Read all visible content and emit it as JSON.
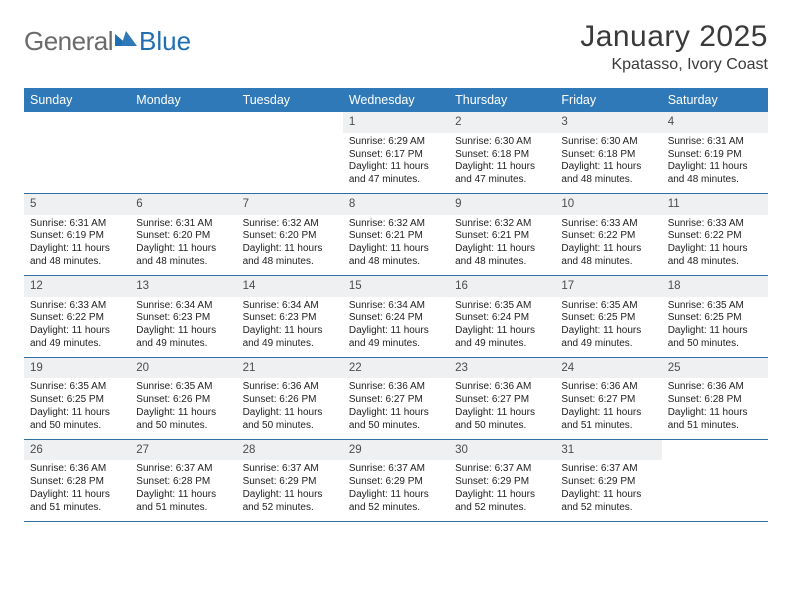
{
  "brand": {
    "text1": "General",
    "text2": "Blue"
  },
  "title": "January 2025",
  "location": "Kpatasso, Ivory Coast",
  "colors": {
    "header_bg": "#2f79b8",
    "header_text": "#ffffff",
    "week_border": "#2f6fa6",
    "daynum_bg": "#eef0f2",
    "brand_grey": "#6b6b6b",
    "brand_blue": "#1f6fb2"
  },
  "weekdays": [
    "Sunday",
    "Monday",
    "Tuesday",
    "Wednesday",
    "Thursday",
    "Friday",
    "Saturday"
  ],
  "weeks": [
    [
      null,
      null,
      null,
      {
        "n": "1",
        "sr": "6:29 AM",
        "ss": "6:17 PM",
        "dl": "11 hours and 47 minutes."
      },
      {
        "n": "2",
        "sr": "6:30 AM",
        "ss": "6:18 PM",
        "dl": "11 hours and 47 minutes."
      },
      {
        "n": "3",
        "sr": "6:30 AM",
        "ss": "6:18 PM",
        "dl": "11 hours and 48 minutes."
      },
      {
        "n": "4",
        "sr": "6:31 AM",
        "ss": "6:19 PM",
        "dl": "11 hours and 48 minutes."
      }
    ],
    [
      {
        "n": "5",
        "sr": "6:31 AM",
        "ss": "6:19 PM",
        "dl": "11 hours and 48 minutes."
      },
      {
        "n": "6",
        "sr": "6:31 AM",
        "ss": "6:20 PM",
        "dl": "11 hours and 48 minutes."
      },
      {
        "n": "7",
        "sr": "6:32 AM",
        "ss": "6:20 PM",
        "dl": "11 hours and 48 minutes."
      },
      {
        "n": "8",
        "sr": "6:32 AM",
        "ss": "6:21 PM",
        "dl": "11 hours and 48 minutes."
      },
      {
        "n": "9",
        "sr": "6:32 AM",
        "ss": "6:21 PM",
        "dl": "11 hours and 48 minutes."
      },
      {
        "n": "10",
        "sr": "6:33 AM",
        "ss": "6:22 PM",
        "dl": "11 hours and 48 minutes."
      },
      {
        "n": "11",
        "sr": "6:33 AM",
        "ss": "6:22 PM",
        "dl": "11 hours and 48 minutes."
      }
    ],
    [
      {
        "n": "12",
        "sr": "6:33 AM",
        "ss": "6:22 PM",
        "dl": "11 hours and 49 minutes."
      },
      {
        "n": "13",
        "sr": "6:34 AM",
        "ss": "6:23 PM",
        "dl": "11 hours and 49 minutes."
      },
      {
        "n": "14",
        "sr": "6:34 AM",
        "ss": "6:23 PM",
        "dl": "11 hours and 49 minutes."
      },
      {
        "n": "15",
        "sr": "6:34 AM",
        "ss": "6:24 PM",
        "dl": "11 hours and 49 minutes."
      },
      {
        "n": "16",
        "sr": "6:35 AM",
        "ss": "6:24 PM",
        "dl": "11 hours and 49 minutes."
      },
      {
        "n": "17",
        "sr": "6:35 AM",
        "ss": "6:25 PM",
        "dl": "11 hours and 49 minutes."
      },
      {
        "n": "18",
        "sr": "6:35 AM",
        "ss": "6:25 PM",
        "dl": "11 hours and 50 minutes."
      }
    ],
    [
      {
        "n": "19",
        "sr": "6:35 AM",
        "ss": "6:25 PM",
        "dl": "11 hours and 50 minutes."
      },
      {
        "n": "20",
        "sr": "6:35 AM",
        "ss": "6:26 PM",
        "dl": "11 hours and 50 minutes."
      },
      {
        "n": "21",
        "sr": "6:36 AM",
        "ss": "6:26 PM",
        "dl": "11 hours and 50 minutes."
      },
      {
        "n": "22",
        "sr": "6:36 AM",
        "ss": "6:27 PM",
        "dl": "11 hours and 50 minutes."
      },
      {
        "n": "23",
        "sr": "6:36 AM",
        "ss": "6:27 PM",
        "dl": "11 hours and 50 minutes."
      },
      {
        "n": "24",
        "sr": "6:36 AM",
        "ss": "6:27 PM",
        "dl": "11 hours and 51 minutes."
      },
      {
        "n": "25",
        "sr": "6:36 AM",
        "ss": "6:28 PM",
        "dl": "11 hours and 51 minutes."
      }
    ],
    [
      {
        "n": "26",
        "sr": "6:36 AM",
        "ss": "6:28 PM",
        "dl": "11 hours and 51 minutes."
      },
      {
        "n": "27",
        "sr": "6:37 AM",
        "ss": "6:28 PM",
        "dl": "11 hours and 51 minutes."
      },
      {
        "n": "28",
        "sr": "6:37 AM",
        "ss": "6:29 PM",
        "dl": "11 hours and 52 minutes."
      },
      {
        "n": "29",
        "sr": "6:37 AM",
        "ss": "6:29 PM",
        "dl": "11 hours and 52 minutes."
      },
      {
        "n": "30",
        "sr": "6:37 AM",
        "ss": "6:29 PM",
        "dl": "11 hours and 52 minutes."
      },
      {
        "n": "31",
        "sr": "6:37 AM",
        "ss": "6:29 PM",
        "dl": "11 hours and 52 minutes."
      },
      null
    ]
  ],
  "labels": {
    "sunrise": "Sunrise:",
    "sunset": "Sunset:",
    "daylight": "Daylight:"
  }
}
